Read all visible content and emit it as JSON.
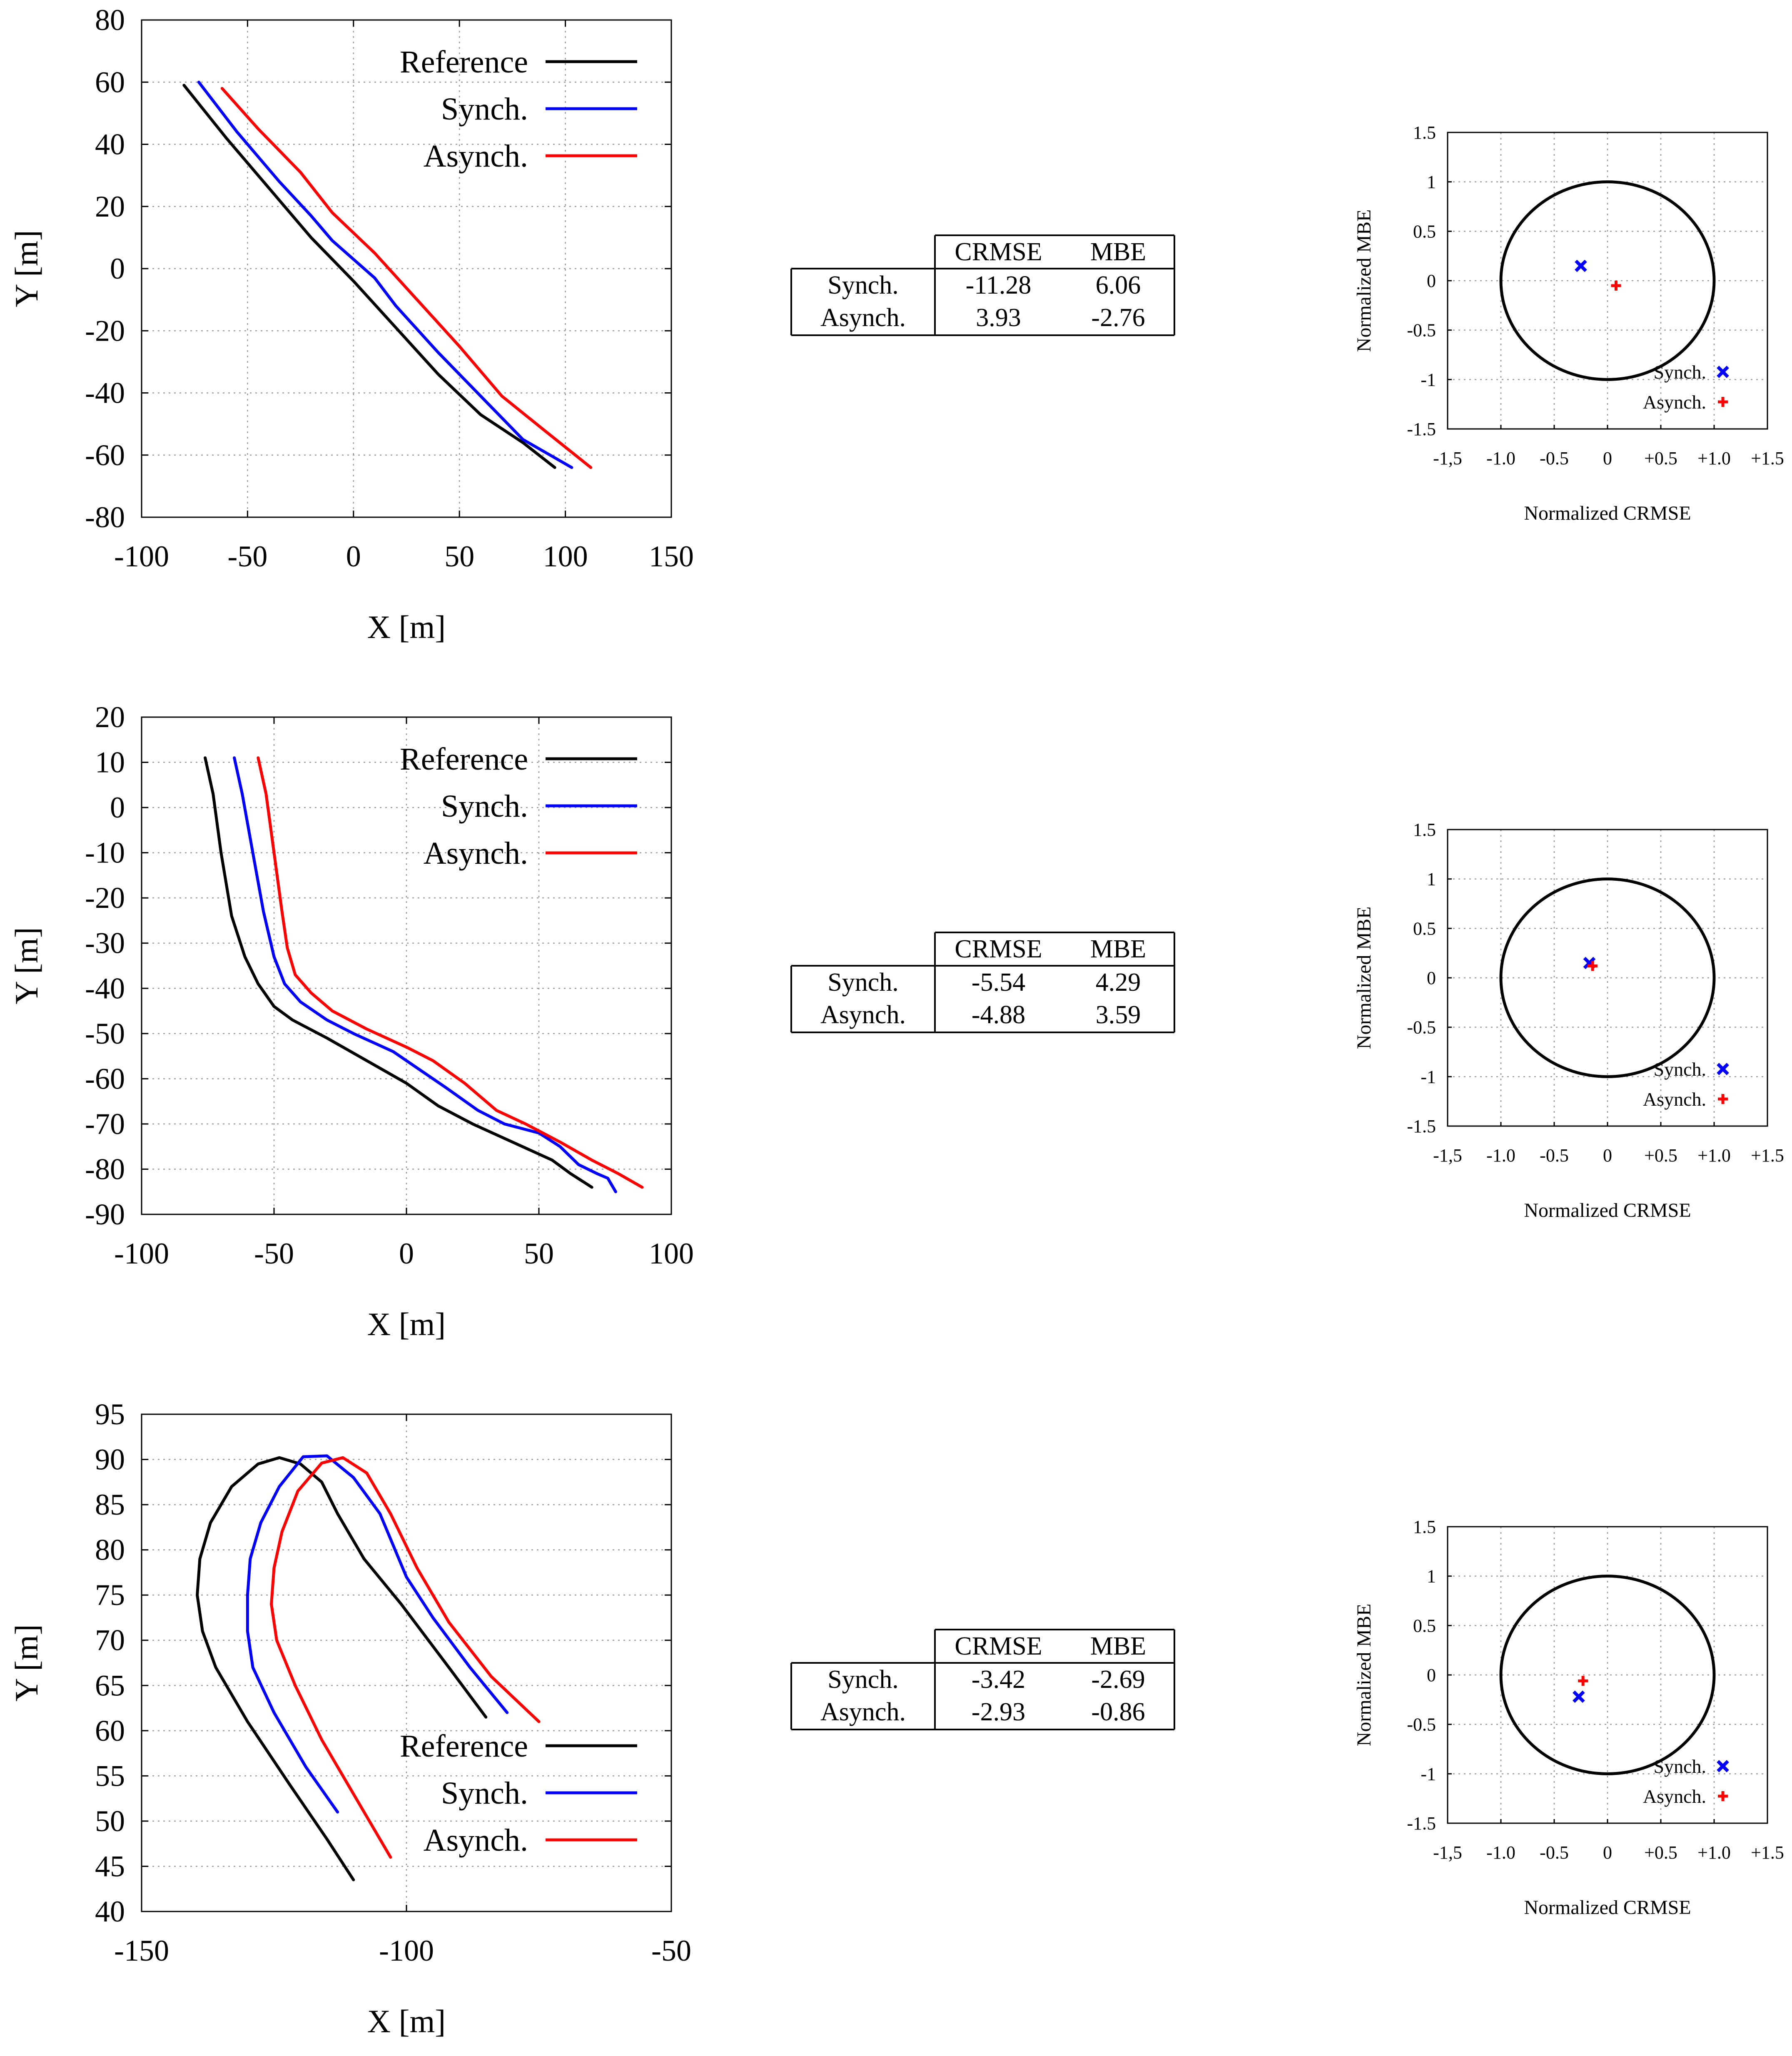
{
  "colors": {
    "reference": "#000000",
    "synch": "#0000ff",
    "asynch": "#ff0000",
    "grid": "#9a9a9a"
  },
  "rows": [
    {
      "trajectory_chart": {
        "type": "line",
        "xlabel": "X [m]",
        "ylabel": "Y [m]",
        "xlim": [
          -100,
          150
        ],
        "ylim": [
          -80,
          80
        ],
        "xticks": [
          -100,
          -50,
          0,
          50,
          100,
          150
        ],
        "yticks": [
          -80,
          -60,
          -40,
          -20,
          0,
          20,
          40,
          60,
          80
        ],
        "legend_position": "top-right",
        "series": [
          {
            "name": "Reference",
            "color_key": "reference",
            "points": [
              [
                -80,
                59
              ],
              [
                -60,
                42
              ],
              [
                -40,
                26
              ],
              [
                -20,
                10
              ],
              [
                0,
                -4
              ],
              [
                20,
                -19
              ],
              [
                40,
                -34
              ],
              [
                60,
                -47
              ],
              [
                80,
                -56
              ],
              [
                95,
                -64
              ]
            ]
          },
          {
            "name": "Synch.",
            "color_key": "synch",
            "points": [
              [
                -73,
                60
              ],
              [
                -55,
                44
              ],
              [
                -35,
                28
              ],
              [
                -20,
                17
              ],
              [
                -10,
                9
              ],
              [
                0,
                3
              ],
              [
                10,
                -3
              ],
              [
                20,
                -12
              ],
              [
                40,
                -27
              ],
              [
                60,
                -41
              ],
              [
                80,
                -55
              ],
              [
                103,
                -64
              ]
            ]
          },
          {
            "name": "Asynch.",
            "color_key": "asynch",
            "points": [
              [
                -62,
                58
              ],
              [
                -45,
                45
              ],
              [
                -25,
                31
              ],
              [
                -10,
                18
              ],
              [
                10,
                5
              ],
              [
                30,
                -10
              ],
              [
                50,
                -25
              ],
              [
                70,
                -41
              ],
              [
                90,
                -52
              ],
              [
                112,
                -64
              ]
            ]
          }
        ]
      },
      "table": {
        "headers": [
          "CRMSE",
          "MBE"
        ],
        "rows": [
          {
            "label": "Synch.",
            "crmse": "-11.28",
            "mbe": "6.06"
          },
          {
            "label": "Asynch.",
            "crmse": "3.93",
            "mbe": "-2.76"
          }
        ]
      },
      "target_chart": {
        "type": "scatter",
        "xlabel": "Normalized CRMSE",
        "ylabel": "Normalized MBE",
        "xlim": [
          -1.5,
          1.5
        ],
        "ylim": [
          -1.5,
          1.5
        ],
        "xtick_labels": [
          "-1,5",
          "-1.0",
          "-0.5",
          "0",
          "+0.5",
          "+1.0",
          "+1.5"
        ],
        "ytick_labels": [
          "1.5",
          "1",
          "0.5",
          "0",
          "-0.5",
          "-1",
          "-1.5"
        ],
        "circle_radius": 1.0,
        "legend": [
          {
            "name": "Synch.",
            "marker": "x",
            "color_key": "synch"
          },
          {
            "name": "Asynch.",
            "marker": "+",
            "color_key": "asynch"
          }
        ],
        "points": [
          {
            "series": "Synch.",
            "marker": "x",
            "color_key": "synch",
            "x": -0.25,
            "y": 0.15
          },
          {
            "series": "Asynch.",
            "marker": "+",
            "color_key": "asynch",
            "x": 0.08,
            "y": -0.05
          }
        ]
      }
    },
    {
      "trajectory_chart": {
        "type": "line",
        "xlabel": "X [m]",
        "ylabel": "Y [m]",
        "xlim": [
          -100,
          100
        ],
        "ylim": [
          -90,
          20
        ],
        "xticks": [
          -100,
          -50,
          0,
          50,
          100
        ],
        "yticks": [
          -90,
          -80,
          -70,
          -60,
          -50,
          -40,
          -30,
          -20,
          -10,
          0,
          10,
          20
        ],
        "legend_position": "top-right",
        "series": [
          {
            "name": "Reference",
            "color_key": "reference",
            "points": [
              [
                -76,
                11
              ],
              [
                -73,
                3
              ],
              [
                -70,
                -10
              ],
              [
                -66,
                -24
              ],
              [
                -61,
                -33
              ],
              [
                -56,
                -39
              ],
              [
                -50,
                -44
              ],
              [
                -43,
                -47
              ],
              [
                -30,
                -51
              ],
              [
                -15,
                -56
              ],
              [
                0,
                -61
              ],
              [
                12,
                -66
              ],
              [
                25,
                -70
              ],
              [
                40,
                -74
              ],
              [
                55,
                -78
              ],
              [
                62,
                -81
              ],
              [
                70,
                -84
              ]
            ]
          },
          {
            "name": "Synch.",
            "color_key": "synch",
            "points": [
              [
                -65,
                11
              ],
              [
                -62,
                3
              ],
              [
                -58,
                -10
              ],
              [
                -54,
                -23
              ],
              [
                -50,
                -33
              ],
              [
                -46,
                -39
              ],
              [
                -40,
                -43
              ],
              [
                -30,
                -47
              ],
              [
                -20,
                -50
              ],
              [
                -5,
                -54
              ],
              [
                5,
                -58
              ],
              [
                15,
                -62
              ],
              [
                27,
                -67
              ],
              [
                37,
                -70
              ],
              [
                50,
                -72
              ],
              [
                58,
                -75
              ],
              [
                65,
                -79
              ],
              [
                72,
                -81
              ],
              [
                76,
                -82
              ],
              [
                79,
                -85
              ]
            ]
          },
          {
            "name": "Asynch.",
            "color_key": "asynch",
            "points": [
              [
                -56,
                11
              ],
              [
                -53,
                3
              ],
              [
                -50,
                -10
              ],
              [
                -47,
                -23
              ],
              [
                -45,
                -31
              ],
              [
                -42,
                -37
              ],
              [
                -36,
                -41
              ],
              [
                -28,
                -45
              ],
              [
                -15,
                -49
              ],
              [
                0,
                -53
              ],
              [
                10,
                -56
              ],
              [
                22,
                -61
              ],
              [
                34,
                -67
              ],
              [
                45,
                -70
              ],
              [
                58,
                -74
              ],
              [
                70,
                -78
              ],
              [
                80,
                -81
              ],
              [
                89,
                -84
              ]
            ]
          }
        ]
      },
      "table": {
        "headers": [
          "CRMSE",
          "MBE"
        ],
        "rows": [
          {
            "label": "Synch.",
            "crmse": "-5.54",
            "mbe": "4.29"
          },
          {
            "label": "Asynch.",
            "crmse": "-4.88",
            "mbe": "3.59"
          }
        ]
      },
      "target_chart": {
        "type": "scatter",
        "xlabel": "Normalized CRMSE",
        "ylabel": "Normalized MBE",
        "xlim": [
          -1.5,
          1.5
        ],
        "ylim": [
          -1.5,
          1.5
        ],
        "xtick_labels": [
          "-1,5",
          "-1.0",
          "-0.5",
          "0",
          "+0.5",
          "+1.0",
          "+1.5"
        ],
        "ytick_labels": [
          "1.5",
          "1",
          "0.5",
          "0",
          "-0.5",
          "-1",
          "-1.5"
        ],
        "circle_radius": 1.0,
        "legend": [
          {
            "name": "Synch.",
            "marker": "x",
            "color_key": "synch"
          },
          {
            "name": "Asynch.",
            "marker": "+",
            "color_key": "asynch"
          }
        ],
        "points": [
          {
            "series": "Synch.",
            "marker": "x",
            "color_key": "synch",
            "x": -0.17,
            "y": 0.15
          },
          {
            "series": "Asynch.",
            "marker": "+",
            "color_key": "asynch",
            "x": -0.14,
            "y": 0.12
          }
        ]
      }
    },
    {
      "trajectory_chart": {
        "type": "line",
        "xlabel": "X [m]",
        "ylabel": "Y [m]",
        "xlim": [
          -150,
          -50
        ],
        "ylim": [
          40,
          95
        ],
        "xticks": [
          -150,
          -100,
          -50
        ],
        "yticks": [
          40,
          45,
          50,
          55,
          60,
          65,
          70,
          75,
          80,
          85,
          90,
          95
        ],
        "legend_position": "bottom-right",
        "series": [
          {
            "name": "Reference",
            "color_key": "reference",
            "points": [
              [
                -110,
                43.5
              ],
              [
                -115,
                48
              ],
              [
                -122,
                54
              ],
              [
                -130,
                61
              ],
              [
                -136,
                67
              ],
              [
                -138.5,
                71
              ],
              [
                -139.5,
                75
              ],
              [
                -139,
                79
              ],
              [
                -137,
                83
              ],
              [
                -133,
                87
              ],
              [
                -128,
                89.5
              ],
              [
                -124,
                90.2
              ],
              [
                -120,
                89.5
              ],
              [
                -116,
                87.5
              ],
              [
                -113,
                84
              ],
              [
                -108,
                79
              ],
              [
                -101,
                74
              ],
              [
                -92,
                67
              ],
              [
                -85,
                61.5
              ]
            ]
          },
          {
            "name": "Synch.",
            "color_key": "synch",
            "points": [
              [
                -113,
                51
              ],
              [
                -119,
                56
              ],
              [
                -125,
                62
              ],
              [
                -129,
                67
              ],
              [
                -130,
                71
              ],
              [
                -130,
                75
              ],
              [
                -129.5,
                79
              ],
              [
                -127.5,
                83
              ],
              [
                -124,
                87
              ],
              [
                -119.5,
                90.3
              ],
              [
                -115,
                90.4
              ],
              [
                -110,
                88
              ],
              [
                -105,
                84
              ],
              [
                -100,
                77
              ],
              [
                -95,
                72.5
              ],
              [
                -88,
                67
              ],
              [
                -81,
                62
              ]
            ]
          },
          {
            "name": "Asynch.",
            "color_key": "asynch",
            "points": [
              [
                -103,
                46
              ],
              [
                -110,
                53
              ],
              [
                -116,
                59
              ],
              [
                -121,
                65
              ],
              [
                -124.5,
                70
              ],
              [
                -125.5,
                74
              ],
              [
                -125,
                78
              ],
              [
                -123.5,
                82
              ],
              [
                -120.5,
                86.5
              ],
              [
                -116,
                89.6
              ],
              [
                -112,
                90.2
              ],
              [
                -107.5,
                88.5
              ],
              [
                -103,
                84
              ],
              [
                -98,
                78
              ],
              [
                -92,
                72
              ],
              [
                -84,
                66
              ],
              [
                -75,
                61
              ]
            ]
          }
        ]
      },
      "table": {
        "headers": [
          "CRMSE",
          "MBE"
        ],
        "rows": [
          {
            "label": "Synch.",
            "crmse": "-3.42",
            "mbe": "-2.69"
          },
          {
            "label": "Asynch.",
            "crmse": "-2.93",
            "mbe": "-0.86"
          }
        ]
      },
      "target_chart": {
        "type": "scatter",
        "xlabel": "Normalized CRMSE",
        "ylabel": "Normalized MBE",
        "xlim": [
          -1.5,
          1.5
        ],
        "ylim": [
          -1.5,
          1.5
        ],
        "xtick_labels": [
          "-1,5",
          "-1.0",
          "-0.5",
          "0",
          "+0.5",
          "+1.0",
          "+1.5"
        ],
        "ytick_labels": [
          "1.5",
          "1",
          "0.5",
          "0",
          "-0.5",
          "-1",
          "-1.5"
        ],
        "circle_radius": 1.0,
        "legend": [
          {
            "name": "Synch.",
            "marker": "x",
            "color_key": "synch"
          },
          {
            "name": "Asynch.",
            "marker": "+",
            "color_key": "asynch"
          }
        ],
        "points": [
          {
            "series": "Synch.",
            "marker": "x",
            "color_key": "synch",
            "x": -0.27,
            "y": -0.22
          },
          {
            "series": "Asynch.",
            "marker": "+",
            "color_key": "asynch",
            "x": -0.23,
            "y": -0.06
          }
        ]
      }
    }
  ]
}
